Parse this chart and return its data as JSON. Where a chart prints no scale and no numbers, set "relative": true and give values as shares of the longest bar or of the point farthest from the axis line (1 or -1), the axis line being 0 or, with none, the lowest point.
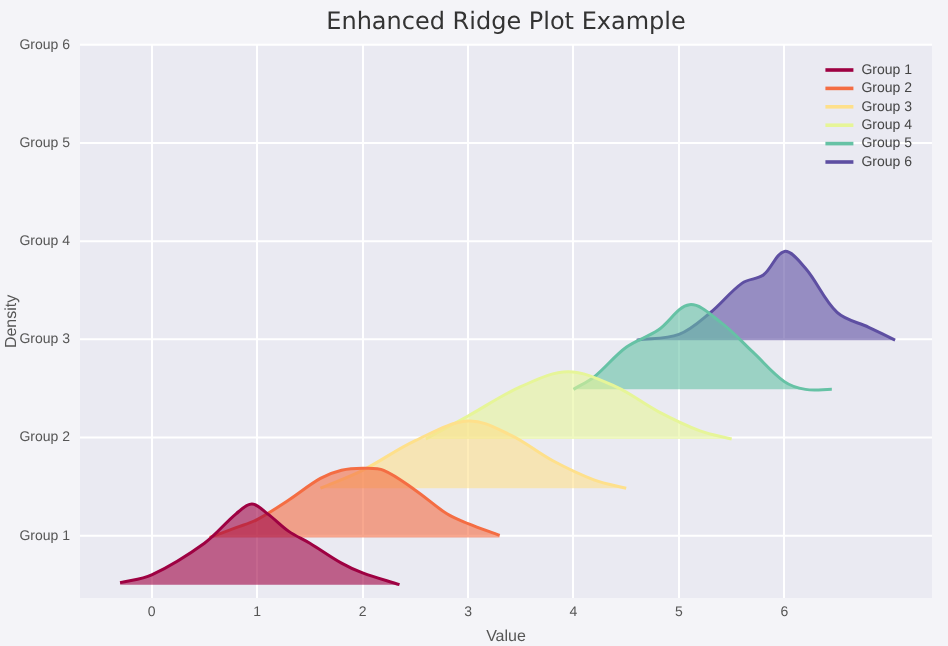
{
  "chart_data": {
    "type": "area",
    "title": "Enhanced Ridge Plot Example",
    "xlabel": "Value",
    "ylabel": "Density",
    "relative": true,
    "xlim": [
      -0.68,
      7.4
    ],
    "xticks": [
      0,
      1,
      2,
      3,
      4,
      5,
      6
    ],
    "annotations": [
      "Group 1",
      "Group 2",
      "Group 3",
      "Group 4",
      "Group 5",
      "Group 6"
    ],
    "grid": true,
    "legend": "top right",
    "tick_labels": "x",
    "series": [
      {
        "name": "Group 1",
        "color": "#9e0142",
        "x": [
          -0.3,
          0,
          0.5,
          0.8,
          0.95,
          1.1,
          1.3,
          1.5,
          1.8,
          2.0,
          2.35
        ],
        "values": [
          0.018,
          0.041,
          0.135,
          0.222,
          0.251,
          0.222,
          0.17,
          0.135,
          0.076,
          0.047,
          0.012
        ]
      },
      {
        "name": "Group 2",
        "color": "#f46d43",
        "x": [
          0.55,
          0.8,
          1.0,
          1.3,
          1.6,
          1.8,
          2.0,
          2.2,
          2.5,
          2.8,
          3.0,
          3.3
        ],
        "values": [
          0.152,
          0.181,
          0.205,
          0.263,
          0.327,
          0.351,
          0.357,
          0.351,
          0.292,
          0.222,
          0.193,
          0.158
        ]
      },
      {
        "name": "Group 3",
        "color": "#fee08b",
        "x": [
          1.6,
          2.0,
          2.5,
          3.0,
          3.4,
          3.8,
          4.2,
          4.5
        ],
        "values": [
          0.298,
          0.351,
          0.439,
          0.497,
          0.456,
          0.38,
          0.322,
          0.298
        ]
      },
      {
        "name": "Group 4",
        "color": "#e6f598",
        "x": [
          2.6,
          3.0,
          3.5,
          3.95,
          4.4,
          4.8,
          5.2,
          5.5
        ],
        "values": [
          0.444,
          0.512,
          0.599,
          0.643,
          0.599,
          0.526,
          0.468,
          0.444
        ]
      },
      {
        "name": "Group 5",
        "color": "#66c2a5",
        "x": [
          4.0,
          4.2,
          4.5,
          4.8,
          5.1,
          5.4,
          5.7,
          6.0,
          6.2,
          6.45
        ],
        "values": [
          0.591,
          0.629,
          0.716,
          0.766,
          0.842,
          0.789,
          0.702,
          0.614,
          0.591,
          0.591
        ]
      },
      {
        "name": "Group 6",
        "color": "#5e4fa2",
        "x": [
          4.6,
          5.0,
          5.3,
          5.6,
          5.8,
          6.0,
          6.2,
          6.5,
          6.8,
          7.05
        ],
        "values": [
          0.737,
          0.754,
          0.819,
          0.906,
          0.93,
          1,
          0.95,
          0.819,
          0.775,
          0.737
        ]
      }
    ]
  }
}
